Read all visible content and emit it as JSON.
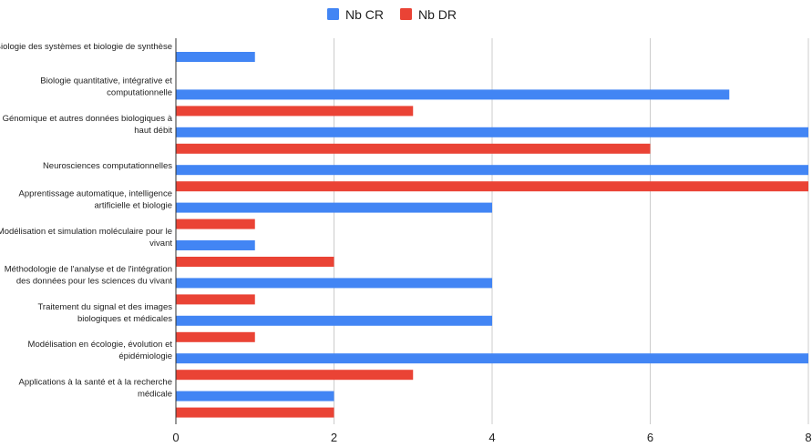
{
  "chart_data": {
    "type": "bar",
    "orientation": "horizontal",
    "categories": [
      "Biologie des systèmes et biologie de synthèse",
      "Biologie quantitative, intégrative et computationnelle",
      "Génomique et autres données biologiques à haut débit",
      "Neurosciences computationnelles",
      "Apprentissage automatique, intelligence artificielle et biologie",
      "Modélisation et simulation moléculaire pour le vivant",
      "Méthodologie de l'analyse et de l'intégration des données pour les sciences du vivant",
      "Traitement du signal et des images biologiques et médicales",
      "Modélisation en écologie, évolution et épidémiologie",
      "Applications à la santé et à la recherche médicale"
    ],
    "category_lines": [
      [
        "Biologie des systèmes et biologie de synthèse"
      ],
      [
        "Biologie quantitative, intégrative et",
        "computationnelle"
      ],
      [
        "Génomique et autres données biologiques à",
        "haut débit"
      ],
      [
        "Neurosciences computationnelles"
      ],
      [
        "Apprentissage automatique, intelligence",
        "artificielle et biologie"
      ],
      [
        "Modélisation et simulation moléculaire pour le",
        "vivant"
      ],
      [
        "Méthodologie de l'analyse et de l'intégration",
        "des données pour les sciences du vivant"
      ],
      [
        "Traitement du signal et des images",
        "biologiques et médicales"
      ],
      [
        "Modélisation en écologie, évolution et",
        "épidémiologie"
      ],
      [
        "Applications à la santé et à la recherche",
        "médicale"
      ]
    ],
    "series": [
      {
        "name": "Nb CR",
        "color": "#4285f4",
        "values": [
          1,
          7,
          8,
          8,
          4,
          1,
          4,
          4,
          8,
          2
        ]
      },
      {
        "name": "Nb DR",
        "color": "#ea4335",
        "values": [
          0,
          3,
          6,
          8,
          1,
          2,
          1,
          1,
          3,
          2
        ]
      }
    ],
    "xlim": [
      0,
      8
    ],
    "xticks": [
      "0",
      "2",
      "4",
      "6",
      "8"
    ],
    "xtick_values": [
      0,
      2,
      4,
      6,
      8
    ],
    "grid": true,
    "legend_position": "top-center",
    "colors": {
      "grid": "#cccccc",
      "axis": "#333333",
      "text": "#222222"
    }
  }
}
